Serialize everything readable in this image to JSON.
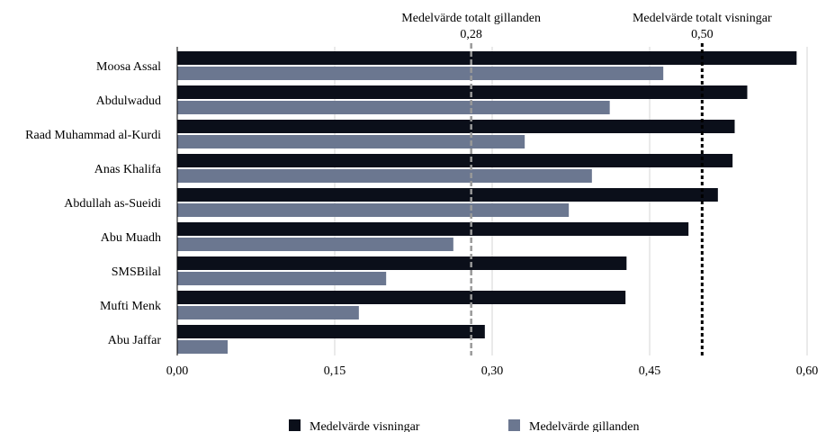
{
  "chart_data": {
    "type": "bar",
    "orientation": "horizontal",
    "categories": [
      "Moosa Assal",
      "Abdulwadud",
      "Raad Muhammad al-Kurdi",
      "Anas Khalifa",
      "Abdullah as-Sueidi",
      "Abu Muadh",
      "SMSBilal",
      "Mufti Menk",
      "Abu Jaffar"
    ],
    "series": [
      {
        "name": "Medelvärde visningar",
        "color": "#0b0f1a",
        "values": [
          0.59,
          0.543,
          0.531,
          0.529,
          0.515,
          0.487,
          0.428,
          0.427,
          0.293
        ]
      },
      {
        "name": "Medelvärde gillanden",
        "color": "#6b7790",
        "values": [
          0.463,
          0.412,
          0.331,
          0.395,
          0.373,
          0.263,
          0.199,
          0.173,
          0.048
        ]
      }
    ],
    "xlim": [
      0,
      0.6
    ],
    "xticks": [
      0,
      0.15,
      0.3,
      0.45,
      0.6
    ],
    "xtick_labels": [
      "0,00",
      "0,15",
      "0,30",
      "0,45",
      "0,60"
    ],
    "grid": "vertical",
    "reference_lines": [
      {
        "label": "Medelvärde totalt gillanden",
        "value": 0.28,
        "value_label": "0,28",
        "color": "#999999",
        "style": "dashed"
      },
      {
        "label": "Medelvärde totalt visningar",
        "value": 0.5,
        "value_label": "0,50",
        "color": "#000000",
        "style": "dotted"
      }
    ],
    "legend_position": "bottom"
  }
}
